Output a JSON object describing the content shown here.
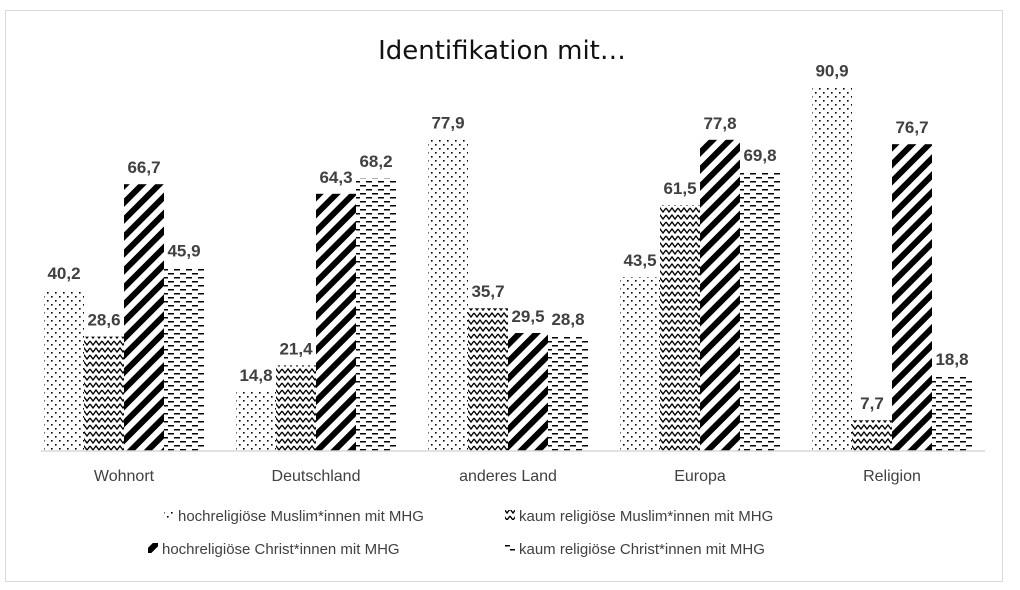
{
  "chart_data": {
    "type": "bar",
    "title": "Identifikation mit…",
    "categories": [
      "Wohnort",
      "Deutschland",
      "anderes  Land",
      "Europa",
      "Religion"
    ],
    "series": [
      {
        "name": "hochreligiöse Muslim*innen mit MHG",
        "pattern": "dots",
        "values": [
          "40,2",
          "14,8",
          "77,9",
          "43,5",
          "90,9"
        ]
      },
      {
        "name": "kaum religiöse Muslim*innen mit MHG",
        "pattern": "zigzag",
        "values": [
          "28,6",
          "21,4",
          "35,7",
          "61,5",
          "7,7"
        ]
      },
      {
        "name": "hochreligiöse Christ*innen mit MHG",
        "pattern": "diagonal-stripes",
        "values": [
          "66,7",
          "64,3",
          "29,5",
          "77,8",
          "76,7"
        ]
      },
      {
        "name": "kaum religiöse Christ*innen mit MHG",
        "pattern": "dashes",
        "values": [
          "45,9",
          "68,2",
          "28,8",
          "69,8",
          "18,8"
        ]
      }
    ],
    "ylim": [
      0,
      100
    ],
    "grid": false,
    "legend": "bottom",
    "colors": {
      "ink": "#000000",
      "text": "#404040",
      "axis": "#d9d9d9"
    }
  }
}
